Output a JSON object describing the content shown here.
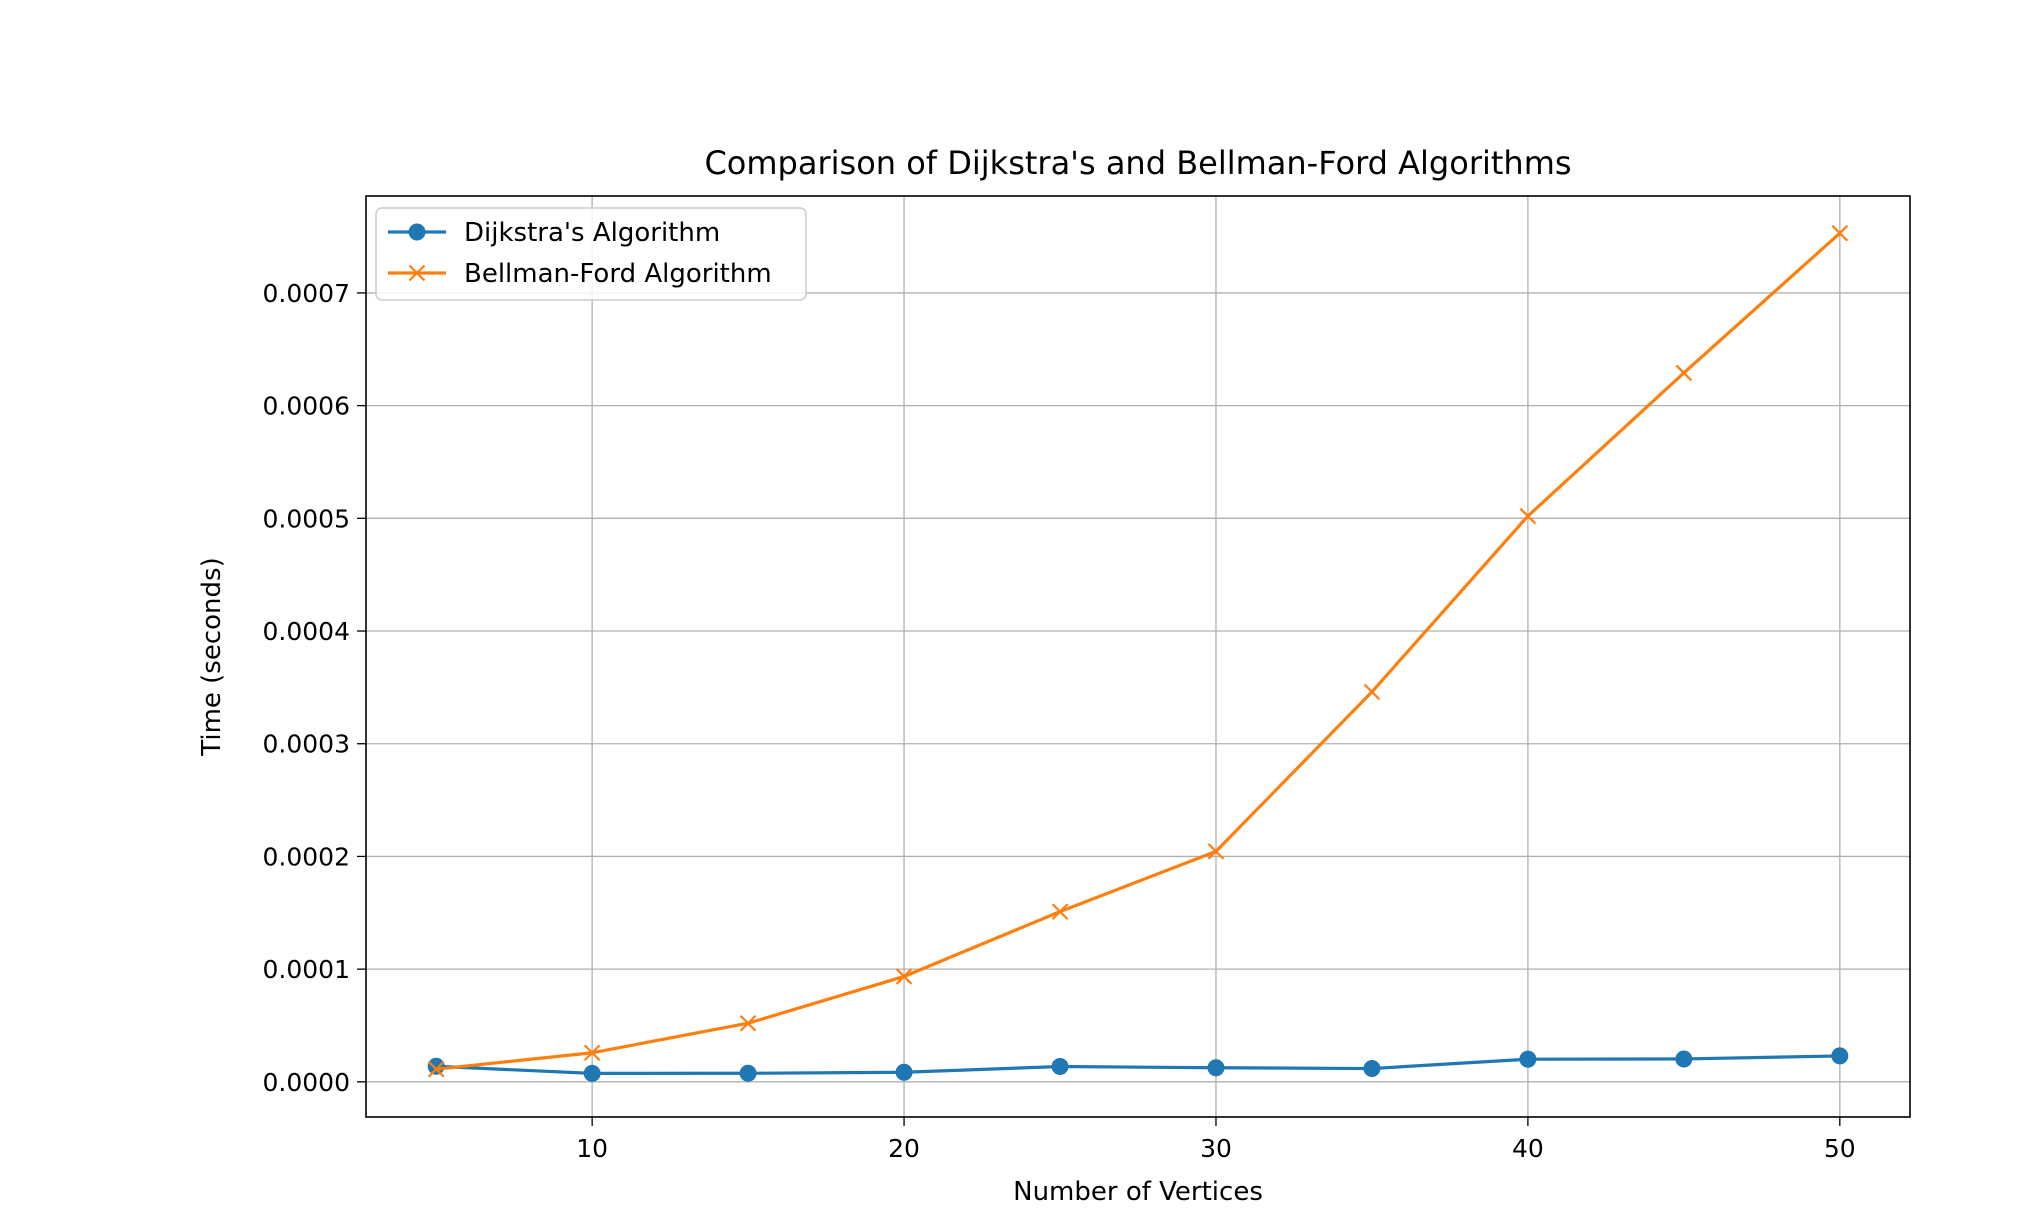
{
  "chart_data": {
    "type": "line",
    "title": "Comparison of Dijkstra's and Bellman-Ford Algorithms",
    "xlabel": "Number of Vertices",
    "ylabel": "Time (seconds)",
    "x": [
      5,
      10,
      15,
      20,
      25,
      30,
      35,
      40,
      45,
      50
    ],
    "xlim": [
      2.75,
      52.25
    ],
    "ylim": [
      -3.12e-05,
      0.000786
    ],
    "xticks": [
      10,
      20,
      30,
      40,
      50
    ],
    "xtick_labels": [
      "10",
      "20",
      "30",
      "40",
      "50"
    ],
    "yticks": [
      0.0,
      0.0001,
      0.0002,
      0.0003,
      0.0004,
      0.0005,
      0.0006,
      0.0007
    ],
    "ytick_labels": [
      "0.0000",
      "0.0001",
      "0.0002",
      "0.0003",
      "0.0004",
      "0.0005",
      "0.0006",
      "0.0007"
    ],
    "grid": true,
    "legend_position": "top-left",
    "series": [
      {
        "name": "Dijkstra's Algorithm",
        "marker": "circle",
        "color": "#1f77b4",
        "values": [
          1.38e-05,
          7.5e-06,
          7.6e-06,
          8.5e-06,
          1.36e-05,
          1.25e-05,
          1.18e-05,
          2.01e-05,
          2.03e-05,
          2.3e-05
        ]
      },
      {
        "name": "Bellman-Ford Algorithm",
        "marker": "x",
        "color": "#ff7f0e",
        "values": [
          1.12e-05,
          2.58e-05,
          5.2e-05,
          9.35e-05,
          0.000151,
          0.0002045,
          0.000346,
          0.000502,
          0.000629,
          0.000753
        ]
      }
    ]
  }
}
